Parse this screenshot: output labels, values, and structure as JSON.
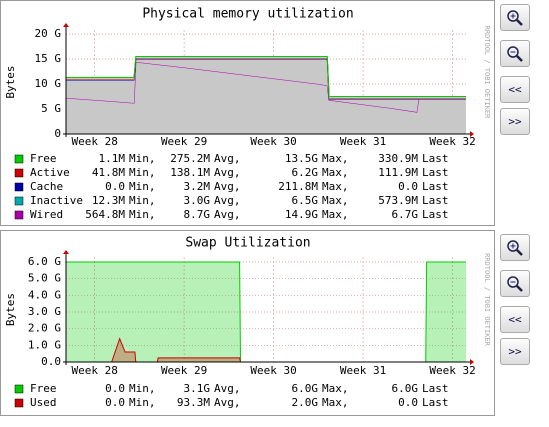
{
  "chart_data": [
    {
      "type": "area",
      "title": "Physical memory utilization",
      "y_label": "Bytes",
      "watermark": "RRDTOOL / TOBI OETIKER",
      "stacked": true,
      "grid": true,
      "x": [
        27.68,
        28.0,
        28.3,
        28.44,
        28.46,
        29.0,
        29.5,
        30.0,
        30.5,
        30.6,
        30.62,
        31.0,
        31.3,
        31.6,
        31.62,
        32.15
      ],
      "xlim": [
        27.68,
        32.15
      ],
      "xticks": [
        {
          "value": 28,
          "label": "Week 28"
        },
        {
          "value": 29,
          "label": "Week 29"
        },
        {
          "value": 30,
          "label": "Week 30"
        },
        {
          "value": 31,
          "label": "Week 31"
        },
        {
          "value": 32,
          "label": "Week 32"
        }
      ],
      "ylim": [
        0,
        20.8
      ],
      "yticks": [
        0,
        {
          "value": 5,
          "label": "5 G"
        },
        {
          "value": 10,
          "label": "10 G"
        },
        {
          "value": 15,
          "label": "15 G"
        },
        {
          "value": 20,
          "label": "20 G"
        }
      ],
      "summary_labels": [
        "Min,",
        "Avg,",
        "Max,",
        "Last"
      ],
      "series": [
        {
          "name": "Free",
          "color": "#00cc00",
          "values": [
            0.3,
            0.3,
            0.3,
            0.3,
            0.3,
            0.3,
            0.3,
            0.3,
            0.3,
            0.3,
            0.3,
            0.3,
            0.3,
            0.3,
            0.3,
            0.3
          ],
          "summary": [
            "1.1M",
            "275.2M",
            "13.5G",
            "330.9M"
          ]
        },
        {
          "name": "Active",
          "color": "#cc0000",
          "values": [
            0.2,
            0.2,
            0.2,
            0.2,
            0.2,
            0.2,
            0.2,
            0.2,
            0.2,
            0.2,
            0.2,
            0.2,
            0.2,
            0.2,
            0.2,
            0.2
          ],
          "summary": [
            "41.8M",
            "138.1M",
            "6.2G",
            "111.9M"
          ]
        },
        {
          "name": "Cache",
          "color": "#0000aa",
          "values": [
            0,
            0,
            0,
            0,
            0,
            0,
            0,
            0,
            0,
            0,
            0,
            0,
            0,
            0,
            0,
            0
          ],
          "summary": [
            "0.0",
            "3.2M",
            "211.8M",
            "0.0"
          ]
        },
        {
          "name": "Inactive",
          "color": "#00aaaa",
          "values": [
            3.6,
            4.0,
            4.4,
            4.6,
            0.6,
            1.7,
            2.8,
            3.9,
            5.0,
            5.3,
            0.2,
            1.1,
            1.8,
            2.6,
            0.0,
            0.0
          ],
          "summary": [
            "12.3M",
            "3.0G",
            "6.5G",
            "573.9M"
          ]
        },
        {
          "name": "Wired",
          "color": "#aa00aa",
          "values": [
            7.2,
            6.8,
            6.4,
            6.2,
            14.4,
            13.3,
            12.2,
            11.1,
            10.0,
            9.7,
            6.8,
            5.9,
            5.2,
            4.4,
            7.0,
            7.0
          ],
          "summary": [
            "564.8M",
            "8.7G",
            "14.9G",
            "6.7G"
          ]
        }
      ]
    },
    {
      "type": "area",
      "title": "Swap Utilization",
      "y_label": "Bytes",
      "watermark": "RRDTOOL / TOBI OETIKER",
      "stacked": false,
      "grid": true,
      "x": [
        27.68,
        28.19,
        28.28,
        28.34,
        28.45,
        28.46,
        28.7,
        28.71,
        29.62,
        29.63,
        31.7,
        31.71,
        32.15
      ],
      "xlim": [
        27.68,
        32.15
      ],
      "xticks": [
        {
          "value": 28,
          "label": "Week 28"
        },
        {
          "value": 29,
          "label": "Week 29"
        },
        {
          "value": 30,
          "label": "Week 30"
        },
        {
          "value": 31,
          "label": "Week 31"
        },
        {
          "value": 32,
          "label": "Week 32"
        }
      ],
      "ylim": [
        0,
        6.3
      ],
      "yticks": [
        {
          "value": 0,
          "label": "0.0"
        },
        {
          "value": 1,
          "label": "1.0 G"
        },
        {
          "value": 2,
          "label": "2.0 G"
        },
        {
          "value": 3,
          "label": "3.0 G"
        },
        {
          "value": 4,
          "label": "4.0 G"
        },
        {
          "value": 5,
          "label": "5.0 G"
        },
        {
          "value": 6,
          "label": "6.0 G"
        }
      ],
      "summary_labels": [
        "Min,",
        "Avg,",
        "Max,",
        "Last"
      ],
      "series": [
        {
          "name": "Free",
          "color": "#00cc00",
          "values": [
            6,
            6,
            6,
            6,
            6,
            6,
            6,
            6,
            6,
            0,
            0,
            6,
            6
          ],
          "summary": [
            "0.0",
            "3.1G",
            "6.0G",
            "6.0G"
          ]
        },
        {
          "name": "Used",
          "color": "#cc0000",
          "values": [
            0,
            0,
            1.4,
            0.6,
            0.6,
            0,
            0,
            0.25,
            0.25,
            0,
            0,
            0,
            0
          ],
          "summary": [
            "0.0",
            "93.3M",
            "2.0G",
            "0.0"
          ]
        }
      ]
    }
  ],
  "controls": [
    {
      "prev": "<<",
      "next": ">>"
    },
    {
      "prev": "<<",
      "next": ">>"
    }
  ]
}
